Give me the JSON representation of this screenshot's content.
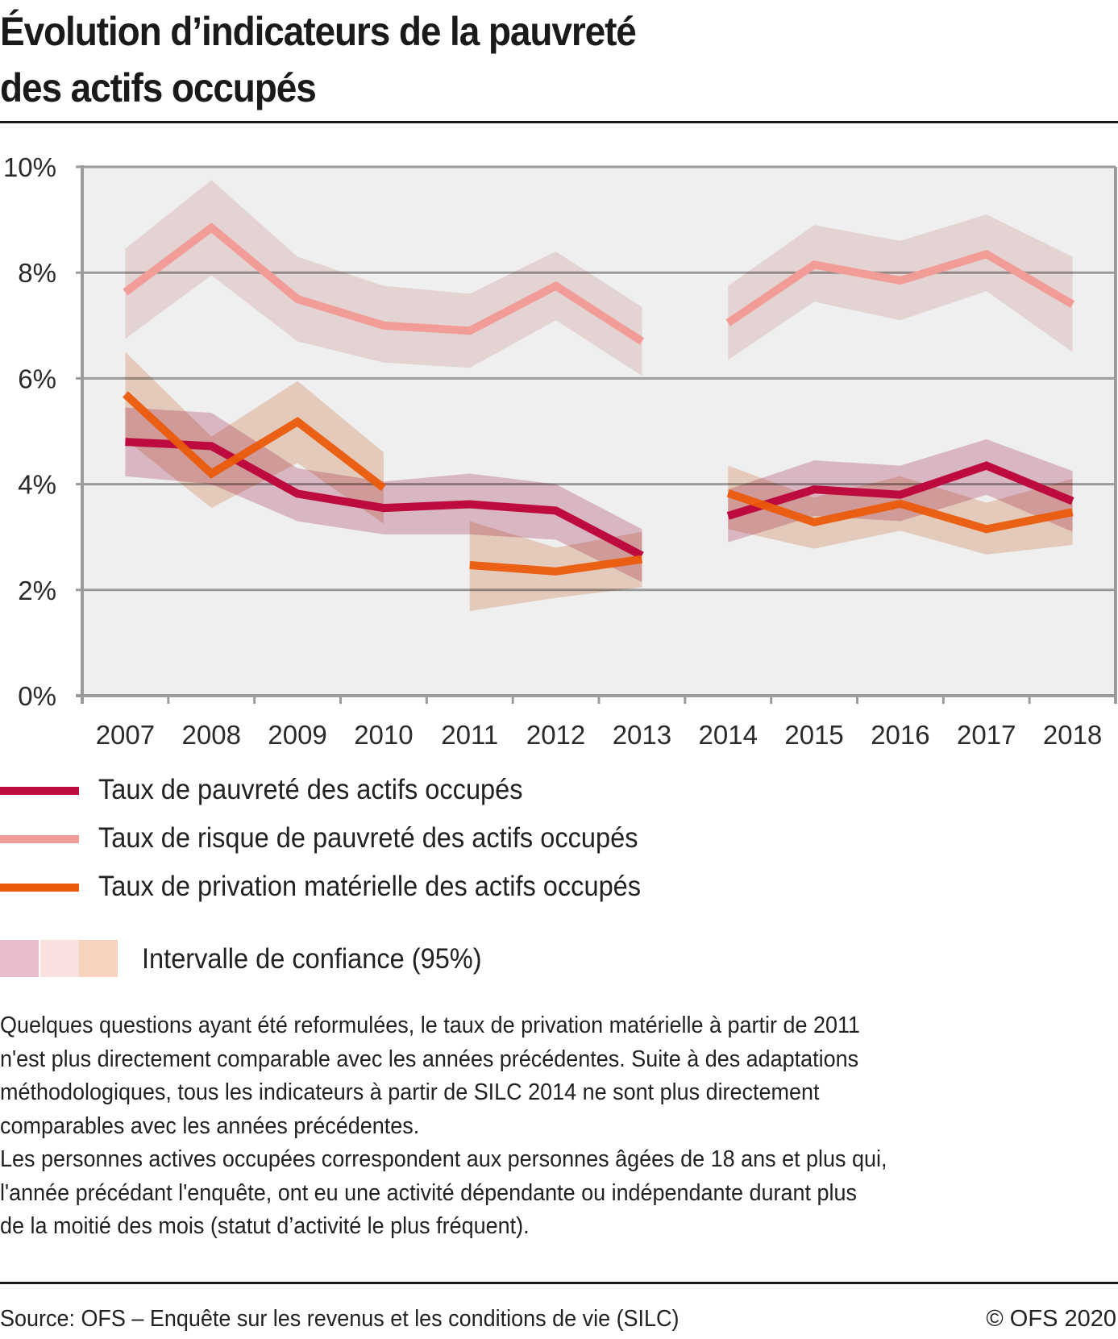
{
  "title": {
    "line1": "Évolution d’indicateurs de la pauvreté",
    "line2": "des actifs occupés"
  },
  "colors": {
    "plot_background": "#efefef",
    "axis": "#9b9b9b",
    "poverty": "#bd0a3f",
    "risk": "#f29c98",
    "deprivation": "#ea5b0c",
    "ci_poverty": "#e2b4c3",
    "ci_risk": "#f1dcdb",
    "ci_deprivation": "#f0cbb4"
  },
  "chart_data": {
    "type": "line",
    "title": "Évolution d’indicateurs de la pauvreté des actifs occupés",
    "xlabel": "",
    "ylabel": "",
    "ylim": [
      0,
      10
    ],
    "y_ticks": [
      0,
      2,
      4,
      6,
      8,
      10
    ],
    "y_tick_labels": [
      "0%",
      "2%",
      "4%",
      "6%",
      "8%",
      "10%"
    ],
    "categories": [
      "2007",
      "2008",
      "2009",
      "2010",
      "2011",
      "2012",
      "2013",
      "2014",
      "2015",
      "2016",
      "2017",
      "2018"
    ],
    "grid": true,
    "legend_position": "bottom",
    "series": [
      {
        "name": "Taux de pauvreté des actifs occupés",
        "key": "poverty",
        "segments": [
          [
            0,
            6
          ],
          [
            7,
            11
          ]
        ],
        "values": [
          4.8,
          4.72,
          3.82,
          3.55,
          3.62,
          3.5,
          2.65,
          3.4,
          3.9,
          3.8,
          4.35,
          3.68
        ],
        "ci_lower": [
          4.15,
          4.0,
          3.3,
          3.05,
          3.05,
          2.95,
          2.15,
          2.9,
          3.4,
          3.3,
          3.8,
          3.1
        ],
        "ci_upper": [
          5.45,
          5.35,
          4.3,
          4.05,
          4.2,
          4.0,
          3.15,
          3.9,
          4.45,
          4.35,
          4.85,
          4.25
        ]
      },
      {
        "name": "Taux de risque de pauvreté des actifs occupés",
        "key": "risk",
        "segments": [
          [
            0,
            6
          ],
          [
            7,
            11
          ]
        ],
        "values": [
          7.63,
          8.85,
          7.5,
          7.0,
          6.9,
          7.75,
          6.7,
          7.05,
          8.15,
          7.85,
          8.35,
          7.4
        ],
        "ci_lower": [
          6.75,
          7.95,
          6.7,
          6.3,
          6.2,
          7.1,
          6.05,
          6.35,
          7.45,
          7.1,
          7.65,
          6.5
        ],
        "ci_upper": [
          8.45,
          9.75,
          8.3,
          7.75,
          7.6,
          8.4,
          7.35,
          7.75,
          8.9,
          8.6,
          9.1,
          8.3
        ]
      },
      {
        "name": "Taux de privation matérielle des actifs occupés",
        "key": "deprivation",
        "segments": [
          [
            0,
            3
          ],
          [
            4,
            6
          ],
          [
            7,
            11
          ]
        ],
        "values": [
          5.7,
          4.2,
          5.18,
          3.93,
          2.47,
          2.35,
          2.58,
          3.83,
          3.28,
          3.63,
          3.15,
          3.47
        ],
        "ci_lower": [
          4.85,
          3.55,
          4.4,
          3.25,
          1.6,
          1.85,
          2.05,
          3.15,
          2.78,
          3.12,
          2.67,
          2.85
        ],
        "ci_upper": [
          6.5,
          4.9,
          5.95,
          4.6,
          3.3,
          2.8,
          3.1,
          4.35,
          3.75,
          4.15,
          3.65,
          4.1
        ]
      }
    ],
    "ci_legend": "Intervalle de confiance (95%)"
  },
  "legend": {
    "items": [
      {
        "label": "Taux de pauvreté des actifs occupés",
        "color": "#bd0a3f"
      },
      {
        "label": "Taux de risque de pauvreté des actifs occupés",
        "color": "#f29c98"
      },
      {
        "label": "Taux de privation matérielle des actifs occupés",
        "color": "#ea5b0c"
      }
    ],
    "ci_label": "Intervalle de confiance (95%)",
    "ci_colors": [
      "#e9bccb",
      "#f9e1e0",
      "#f7d3bd"
    ]
  },
  "notes": {
    "lines": [
      "Quelques questions ayant été reformulées, le taux de privation matérielle à partir de 2011",
      "n'est plus directement comparable avec les années précédentes. Suite à des adaptations",
      "méthodologiques, tous les indicateurs à partir de SILC 2014 ne sont plus directement",
      "comparables avec les années précédentes.",
      "Les personnes actives occupées correspondent aux personnes âgées de 18 ans et plus qui,",
      "l'année précédant l'enquête, ont eu une activité dépendante ou indépendante durant plus",
      "de la moitié des mois (statut d’activité le plus fréquent)."
    ]
  },
  "footer": {
    "source": "Source: OFS – Enquête sur les revenus et les conditions de vie (SILC)",
    "copyright": "© OFS 2020"
  }
}
